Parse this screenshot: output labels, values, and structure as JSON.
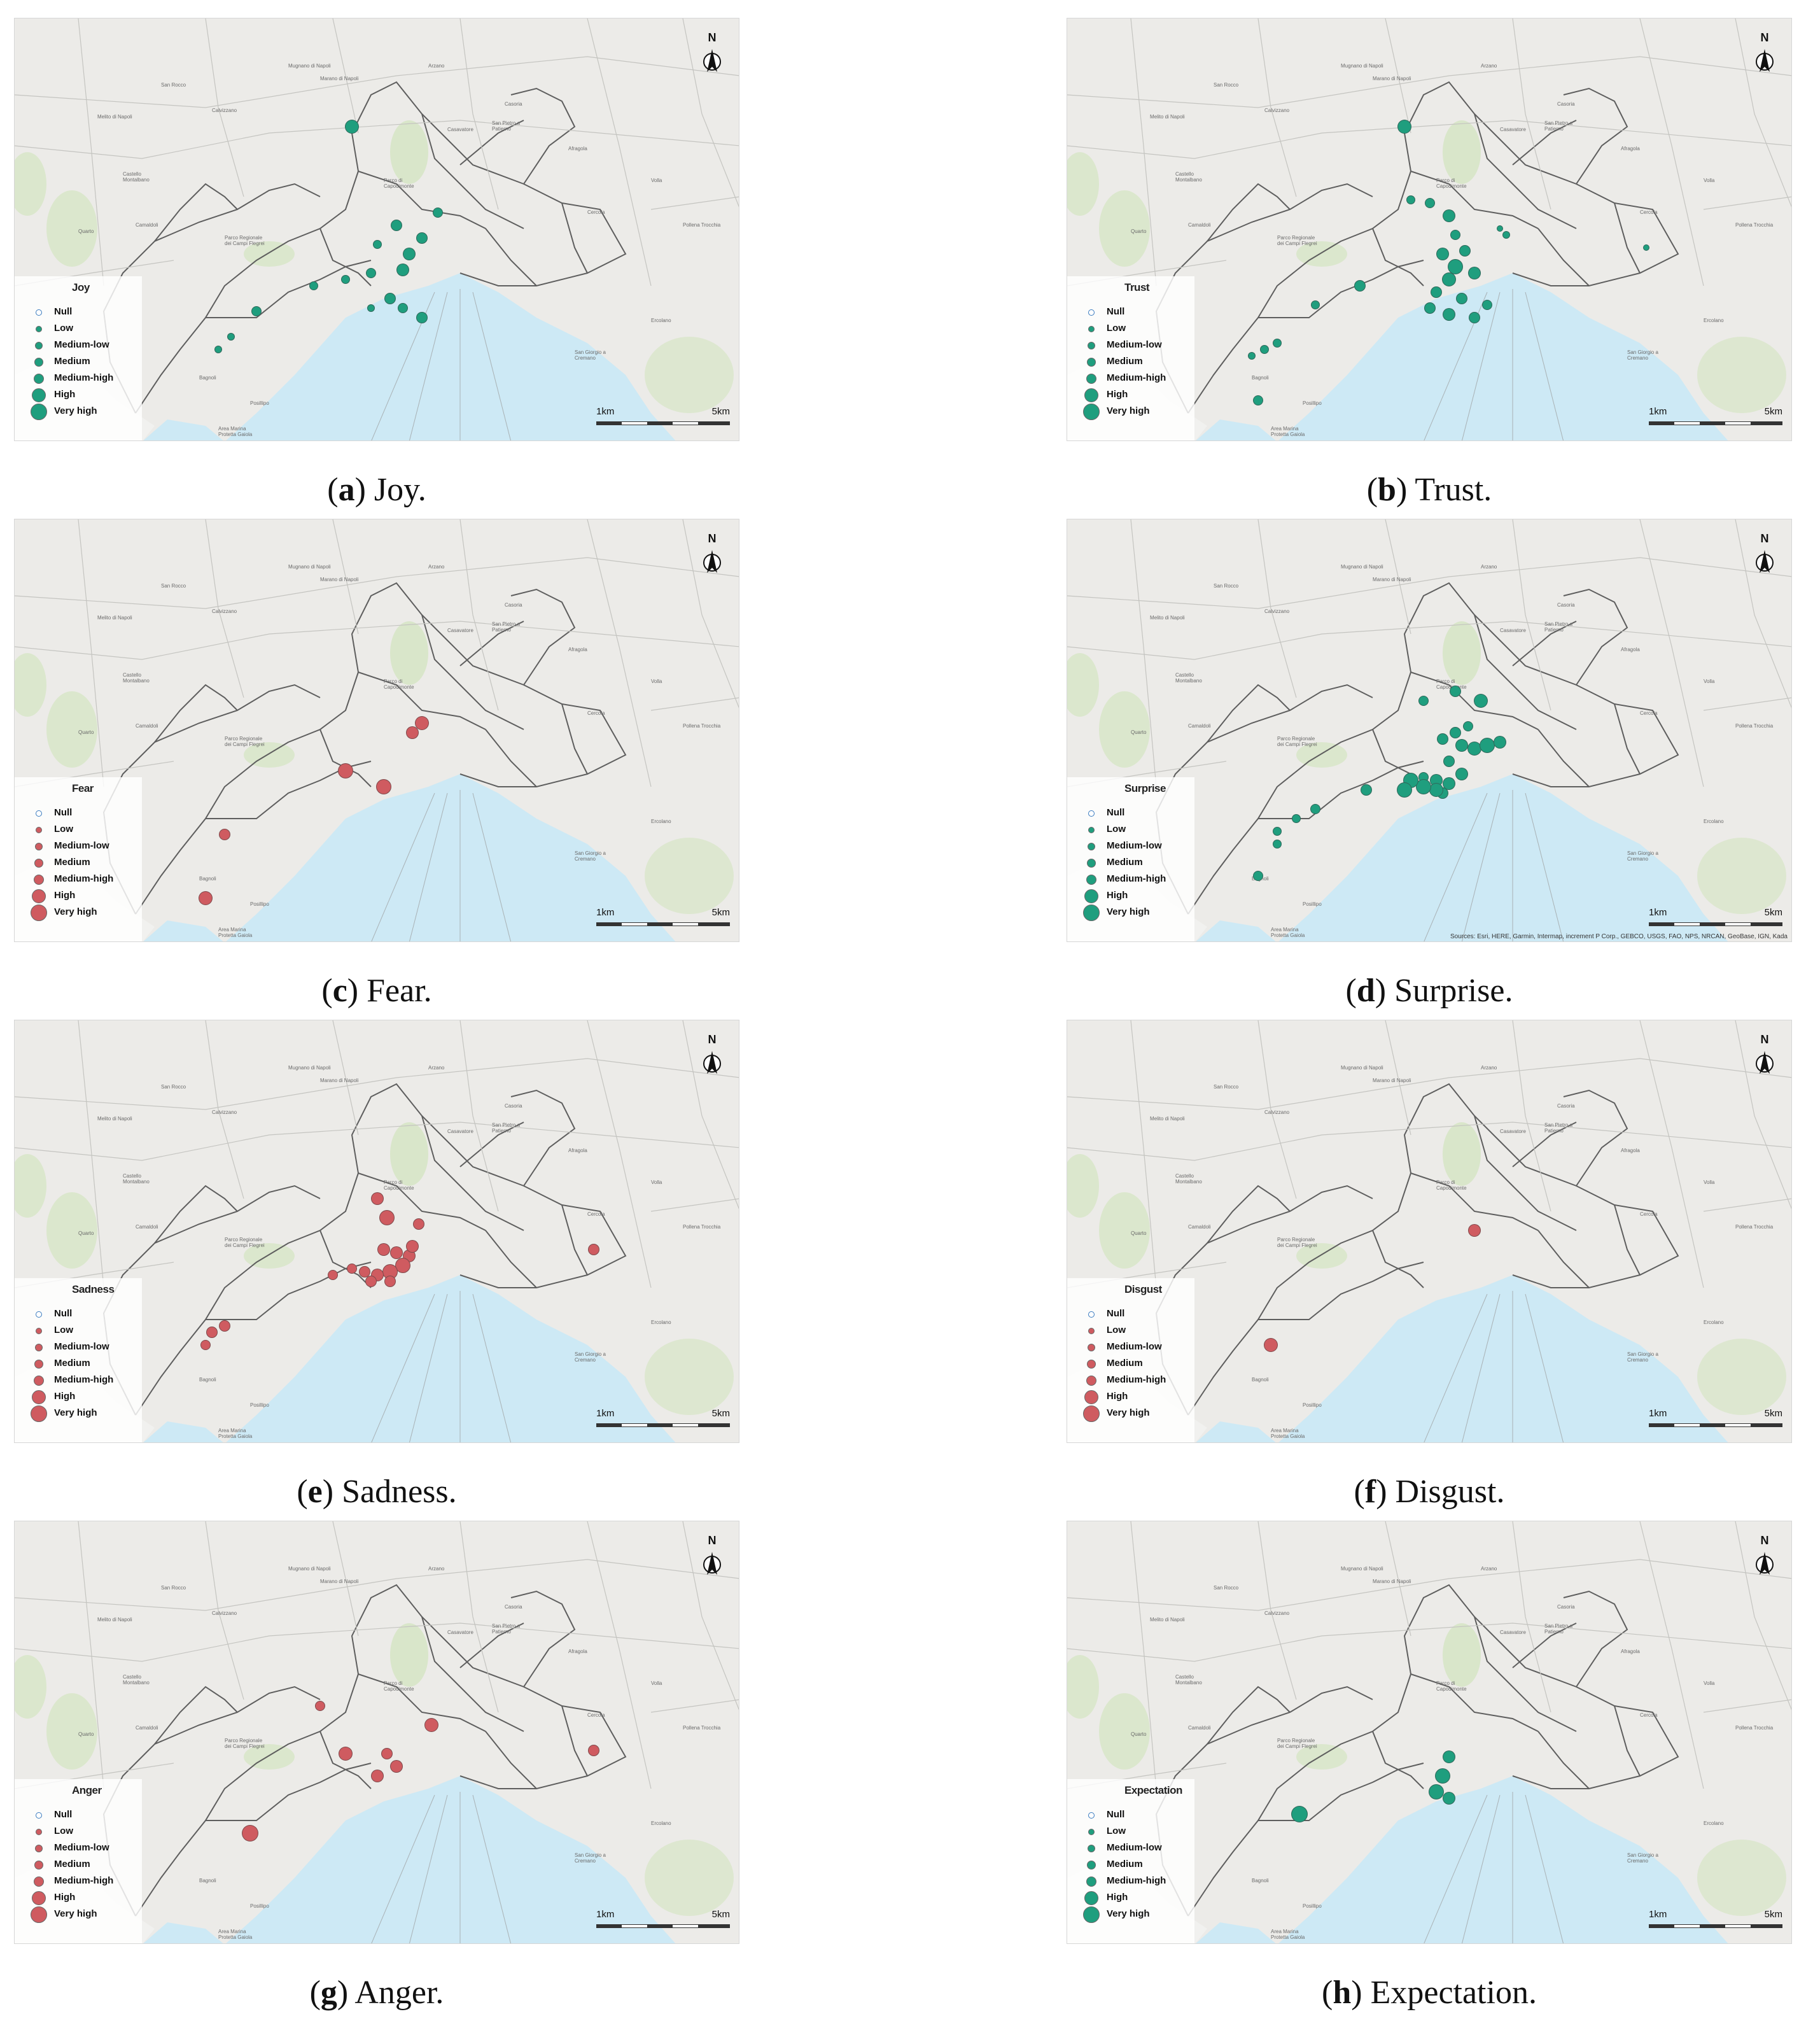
{
  "legend_levels": [
    "Null",
    "Low",
    "Medium-low",
    "Medium",
    "Medium-high",
    "High",
    "Very high"
  ],
  "north_label": "N",
  "scale": {
    "left": "1km",
    "right": "5km"
  },
  "sources": "Sources: Esri, HERE, Garmin, Intermap, increment P Corp., GEBCO, USGS, FAO, NPS, NRCAN, GeoBase, IGN, Kada",
  "colors": {
    "positive": "#1f9e7e",
    "negative": "#cf5b60",
    "sea": "#cde9f5",
    "land": "#ecebe8",
    "park": "#d7e6c6"
  },
  "panels": [
    {
      "letter": "a",
      "name": "Joy",
      "caption": "Joy.",
      "legend_title": "Joy",
      "color": "positive"
    },
    {
      "letter": "b",
      "name": "Trust",
      "caption": "Trust.",
      "legend_title": "Trust",
      "color": "positive"
    },
    {
      "letter": "c",
      "name": "Fear",
      "caption": "Fear.",
      "legend_title": "Fear",
      "color": "negative"
    },
    {
      "letter": "d",
      "name": "Surprise",
      "caption": "Surprise.",
      "legend_title": "Surprise",
      "color": "positive",
      "show_sources": true
    },
    {
      "letter": "e",
      "name": "Sadness",
      "caption": "Sadness.",
      "legend_title": "Sadness",
      "color": "negative"
    },
    {
      "letter": "f",
      "name": "Disgust",
      "caption": "Disgust.",
      "legend_title": "Disgust",
      "color": "negative"
    },
    {
      "letter": "g",
      "name": "Anger",
      "caption": "Anger.",
      "legend_title": "Anger",
      "color": "negative"
    },
    {
      "letter": "h",
      "name": "Expectation",
      "caption": "Expectation.",
      "legend_title": "Expectation",
      "color": "positive"
    }
  ],
  "map_labels": [
    "Mugnano di Napoli",
    "San Rocco",
    "Marano di Napoli",
    "Calvizzano",
    "Casoria",
    "Arzano",
    "Melito di Napoli",
    "Casavatore",
    "San Pietro a Patierno",
    "Castello Montalbano",
    "Quarto",
    "Camaldoli",
    "Parco di Capodimonte",
    "Afragola",
    "Volla",
    "Cercola",
    "Pollena Trocchia",
    "Ercolano",
    "San Giorgio a Cremano",
    "Bagnoli",
    "Posillipo",
    "Parco Regionale dei Campi Flegrei",
    "Area Marina Protetta Gaiola"
  ]
}
